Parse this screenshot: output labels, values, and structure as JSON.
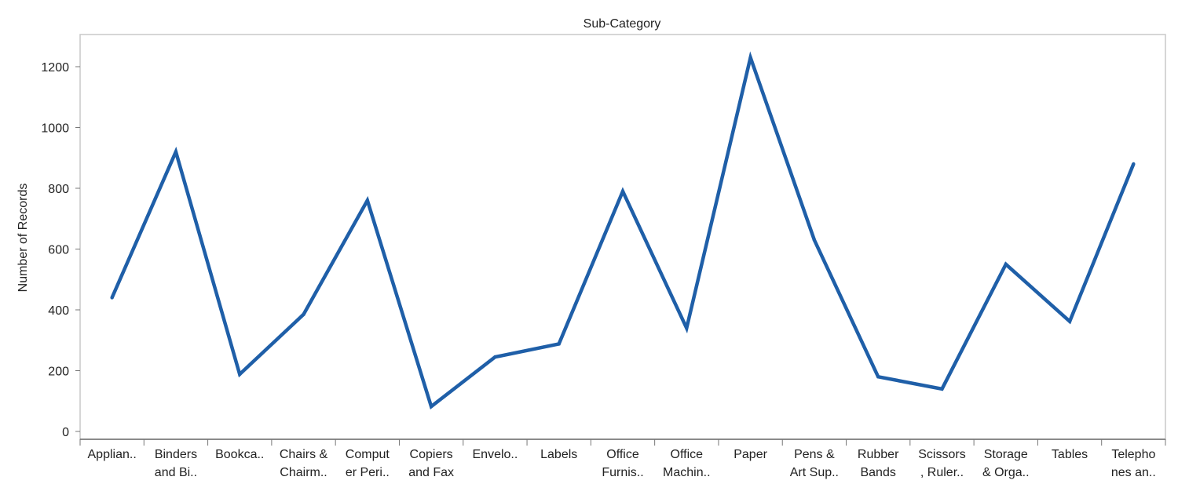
{
  "chart_data": {
    "type": "line",
    "title": "Sub-Category",
    "xlabel": "",
    "ylabel": "Number of Records",
    "ylim": [
      0,
      1300
    ],
    "yticks": [
      0,
      200,
      400,
      600,
      800,
      1000,
      1200
    ],
    "grid": false,
    "categories": [
      [
        "Applian.."
      ],
      [
        "Binders",
        "and Bi.."
      ],
      [
        "Bookca.."
      ],
      [
        "Chairs &",
        "Chairm.."
      ],
      [
        "Comput",
        "er Peri.."
      ],
      [
        "Copiers",
        "and Fax"
      ],
      [
        "Envelo.."
      ],
      [
        "Labels"
      ],
      [
        "Office",
        "Furnis.."
      ],
      [
        "Office",
        "Machin.."
      ],
      [
        "Paper"
      ],
      [
        "Pens &",
        "Art Sup.."
      ],
      [
        "Rubber",
        "Bands"
      ],
      [
        "Scissors",
        ", Ruler.."
      ],
      [
        "Storage",
        "& Orga.."
      ],
      [
        "Tables"
      ],
      [
        "Telepho",
        "nes an.."
      ]
    ],
    "series": [
      {
        "values": [
          440,
          920,
          188,
          385,
          760,
          82,
          245,
          288,
          790,
          340,
          1230,
          630,
          180,
          140,
          550,
          362,
          880
        ],
        "color": "#1f5fa8"
      }
    ]
  }
}
